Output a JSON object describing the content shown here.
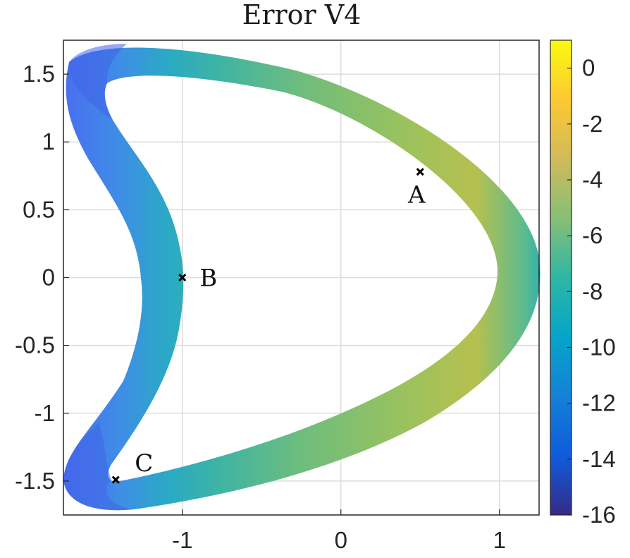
{
  "chart_data": {
    "type": "heatmap",
    "title": "Error V4",
    "xlabel": "",
    "ylabel": "",
    "xlim": [
      -1.75,
      1.25
    ],
    "ylim": [
      -1.75,
      1.75
    ],
    "x_ticks": [
      -1,
      0,
      1
    ],
    "x_tick_labels": [
      "-1",
      "0",
      "1"
    ],
    "y_ticks": [
      1.5,
      1,
      0.5,
      0,
      -0.5,
      -1,
      -1.5
    ],
    "y_tick_labels": [
      "1.5",
      "1",
      "0.5",
      "0",
      "-0.5",
      "-1",
      "-1.5"
    ],
    "grid": true,
    "colorbar": {
      "limits": [
        -16,
        1
      ],
      "ticks": [
        0,
        -2,
        -4,
        -6,
        -8,
        -10,
        -12,
        -14,
        -16
      ],
      "tick_labels": [
        "0",
        "-2",
        "-4",
        "-6",
        "-8",
        "-10",
        "-12",
        "-14",
        "-16"
      ],
      "colormap": "parula",
      "colors": [
        "#352a87",
        "#0f5cdd",
        "#1481d6",
        "#06a4ca",
        "#2eb7a4",
        "#87bf77",
        "#d1bb59",
        "#fec832",
        "#f9fb0e"
      ]
    },
    "annotations": [
      {
        "label": "A",
        "x": 0.5,
        "y": 0.78
      },
      {
        "label": "B",
        "x": -1.0,
        "y": 0.0
      },
      {
        "label": "C",
        "x": -1.42,
        "y": -1.49
      }
    ]
  }
}
